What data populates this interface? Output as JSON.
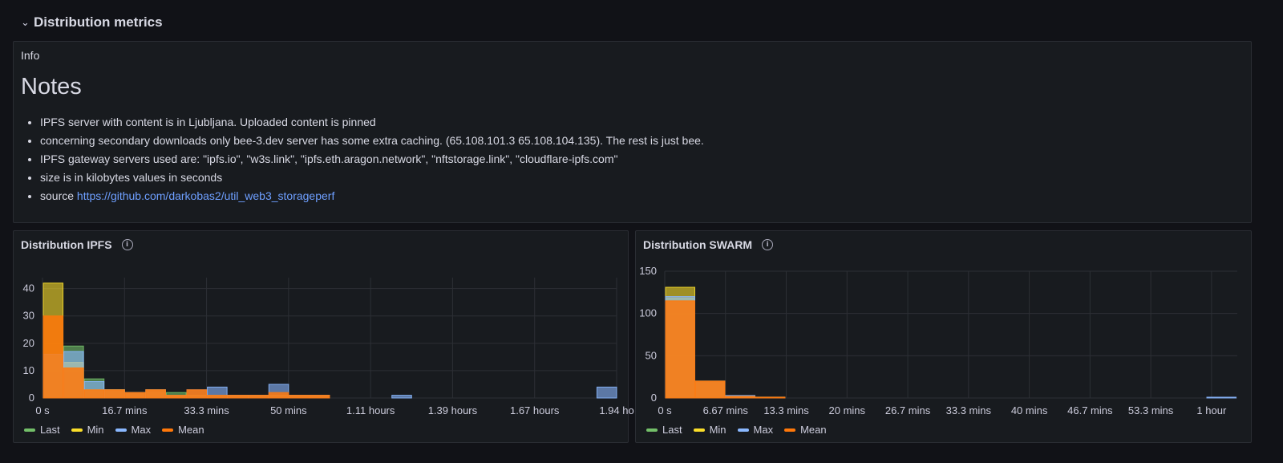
{
  "row": {
    "title": "Distribution metrics"
  },
  "info": {
    "title": "Info",
    "heading": "Notes",
    "items": [
      "IPFS server with content is in Ljubljana. Uploaded content is pinned",
      "concerning secondary downloads only bee-3.dev server has some extra caching. (65.108.101.3 65.108.104.135). The rest is just bee.",
      "IPFS gateway servers used are: \"ipfs.io\", \"w3s.link\", \"ipfs.eth.aragon.network\", \"nftstorage.link\", \"cloudflare-ipfs.com\"",
      "size is in kilobytes values in seconds"
    ],
    "source_prefix": "source ",
    "source_link": "https://github.com/darkobas2/util_web3_storageperf"
  },
  "colors": {
    "last": "#73bf69",
    "min": "#fade2a",
    "max": "#8ab8ff",
    "mean": "#ff780a"
  },
  "legend": [
    "Last",
    "Min",
    "Max",
    "Mean"
  ],
  "chart_data": [
    {
      "title": "Distribution IPFS",
      "type": "bar",
      "x_ticks": [
        "0 s",
        "16.7 mins",
        "33.3 mins",
        "50 mins",
        "1.11 hours",
        "1.39 hours",
        "1.67 hours",
        "1.94 ho"
      ],
      "y_ticks": [
        0,
        10,
        20,
        30,
        40
      ],
      "ylim": [
        0,
        44
      ],
      "bin_count": 28,
      "series": [
        {
          "name": "Last",
          "values": [
            16,
            19,
            7,
            3,
            2,
            2,
            2,
            0,
            0,
            0,
            0,
            0,
            0,
            0,
            0,
            0,
            0,
            0,
            0,
            0,
            0,
            0,
            0,
            0,
            0,
            0,
            0,
            0
          ]
        },
        {
          "name": "Min",
          "values": [
            42,
            13,
            3,
            3,
            2,
            3,
            1,
            1,
            1,
            1,
            1,
            1,
            1,
            1,
            0,
            0,
            0,
            0,
            0,
            0,
            0,
            0,
            0,
            0,
            0,
            0,
            0,
            0
          ]
        },
        {
          "name": "Max",
          "values": [
            16,
            17,
            6,
            3,
            2,
            3,
            1,
            3,
            4,
            1,
            1,
            5,
            1,
            1,
            0,
            0,
            0,
            1,
            0,
            0,
            0,
            0,
            0,
            0,
            0,
            0,
            0,
            4
          ]
        },
        {
          "name": "Mean",
          "values": [
            30,
            11,
            3,
            3,
            2,
            3,
            1,
            3,
            1,
            1,
            1,
            2,
            1,
            1,
            0,
            0,
            0,
            0,
            0,
            0,
            0,
            0,
            0,
            0,
            0,
            0,
            0,
            0
          ]
        }
      ]
    },
    {
      "title": "Distribution SWARM",
      "type": "bar",
      "x_ticks": [
        "0 s",
        "6.67 mins",
        "13.3 mins",
        "20 mins",
        "26.7 mins",
        "33.3 mins",
        "40 mins",
        "46.7 mins",
        "53.3 mins",
        "1 hour"
      ],
      "y_ticks": [
        0,
        50,
        100,
        150
      ],
      "ylim": [
        0,
        150
      ],
      "bin_count": 19,
      "series": [
        {
          "name": "Last",
          "values": [
            118,
            20,
            2,
            1,
            0,
            0,
            0,
            0,
            0,
            0,
            0,
            0,
            0,
            0,
            0,
            0,
            0,
            0,
            0
          ]
        },
        {
          "name": "Min",
          "values": [
            131,
            20,
            2,
            1,
            0,
            0,
            0,
            0,
            0,
            0,
            0,
            0,
            0,
            0,
            0,
            0,
            0,
            0,
            0
          ]
        },
        {
          "name": "Max",
          "values": [
            120,
            20,
            3,
            1,
            0,
            0,
            0,
            0,
            0,
            0,
            0,
            0,
            0,
            0,
            0,
            0,
            0,
            0,
            1
          ]
        },
        {
          "name": "Mean",
          "values": [
            115,
            20,
            2,
            1,
            0,
            0,
            0,
            0,
            0,
            0,
            0,
            0,
            0,
            0,
            0,
            0,
            0,
            0,
            0
          ]
        }
      ]
    }
  ]
}
